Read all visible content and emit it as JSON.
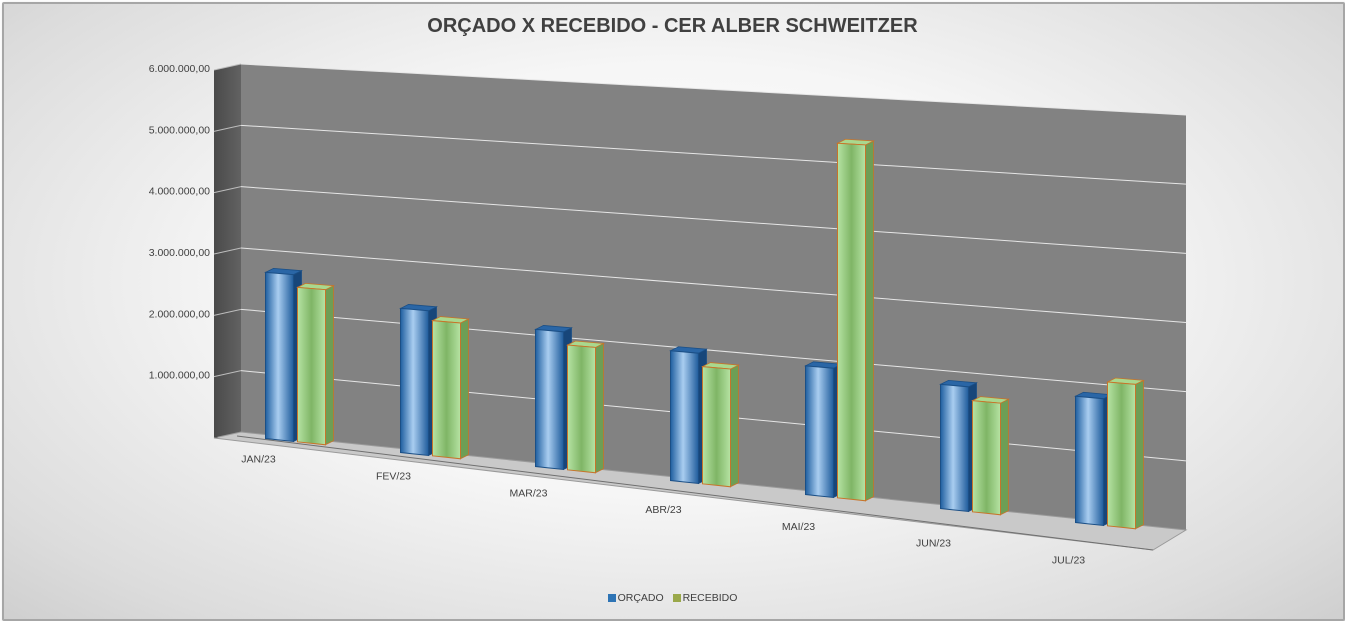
{
  "chart_data": {
    "type": "bar",
    "title": "ORÇADO X RECEBIDO - CER ALBER SCHWEITZER",
    "categories": [
      "JAN/23",
      "FEV/23",
      "MAR/23",
      "ABR/23",
      "MAI/23",
      "JUN/23",
      "JUL/23"
    ],
    "series": [
      {
        "name": "ORÇADO",
        "color": "#2e74b5",
        "values": [
          2700000,
          2300000,
          2150000,
          2000000,
          1950000,
          1850000,
          1850000
        ]
      },
      {
        "name": "RECEBIDO",
        "color": "#8fce6e",
        "values": [
          2500000,
          2150000,
          1950000,
          1800000,
          5350000,
          1650000,
          2100000
        ]
      }
    ],
    "yticks": [
      "-",
      "1.000.000,00",
      "2.000.000,00",
      "3.000.000,00",
      "4.000.000,00",
      "5.000.000,00",
      "6.000.000,00"
    ],
    "ylim": [
      0,
      6000000
    ],
    "grid": true,
    "legend_position": "bottom",
    "style": "3d-perspective"
  }
}
